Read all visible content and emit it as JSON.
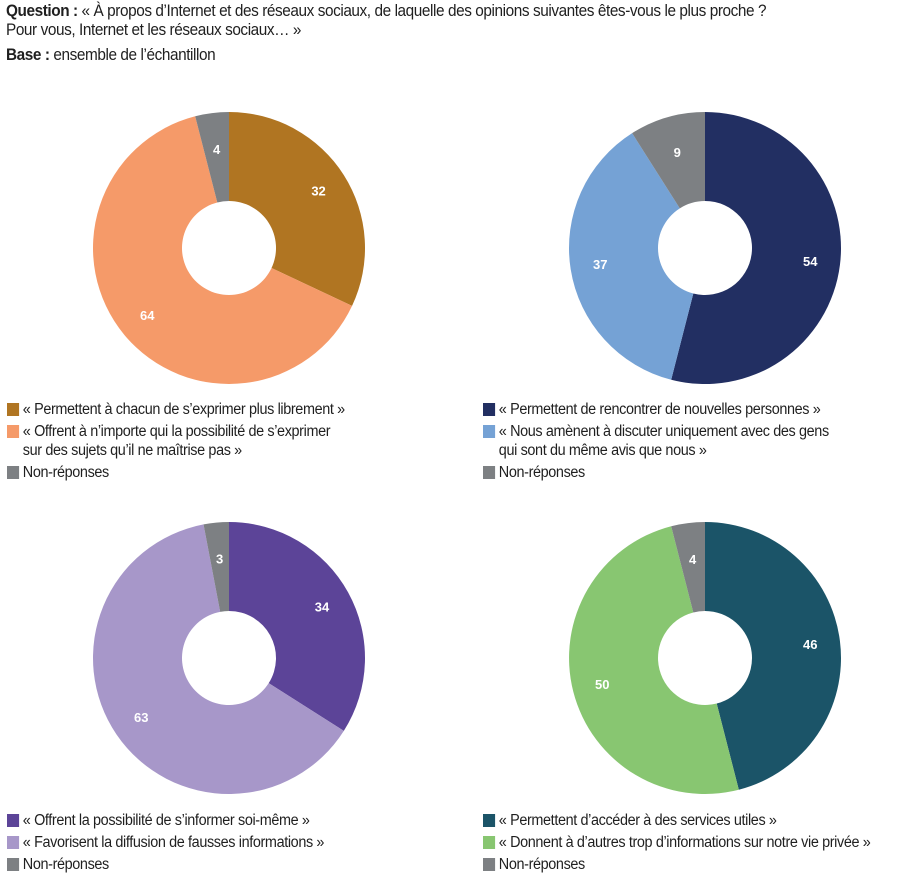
{
  "header": {
    "question_label": "Question :",
    "question_line1": "« À propos d’Internet et des réseaux sociaux, de laquelle des opinions suivantes êtes-vous le plus proche ?",
    "question_line2": "Pour vous, Internet et les réseaux sociaux… »",
    "base_label": "Base :",
    "base_text": "ensemble de l’échantillon"
  },
  "chart_data": [
    {
      "type": "pie",
      "donut": true,
      "title": "",
      "slices": [
        {
          "label": "« Permettent à chacun de s’exprimer plus librement »",
          "value": 32,
          "color": "#b07522"
        },
        {
          "label": "« Offrent à n’importe qui la possibilité de s’exprimer sur des sujets qu’il ne maîtrise pas »",
          "value": 64,
          "color": "#f59a69"
        },
        {
          "label": "Non-réponses",
          "value": 4,
          "color": "#7d8083"
        }
      ],
      "legend": [
        {
          "lines": [
            "« Permettent à chacun de s’exprimer plus librement »"
          ],
          "color": "#b07522"
        },
        {
          "lines": [
            "« Offrent à n’importe qui la possibilité de s’exprimer",
            "sur des sujets qu’il ne maîtrise pas »"
          ],
          "color": "#f59a69"
        },
        {
          "lines": [
            "Non-réponses"
          ],
          "color": "#7d8083"
        }
      ],
      "legend_position": "bottom"
    },
    {
      "type": "pie",
      "donut": true,
      "title": "",
      "slices": [
        {
          "label": "« Permettent de rencontrer de nouvelles personnes »",
          "value": 54,
          "color": "#222f62"
        },
        {
          "label": "« Nous amènent à discuter uniquement avec des gens qui sont du même avis que nous »",
          "value": 37,
          "color": "#75a2d5"
        },
        {
          "label": "Non-réponses",
          "value": 9,
          "color": "#7d8083"
        }
      ],
      "legend": [
        {
          "lines": [
            "« Permettent de rencontrer de nouvelles personnes »"
          ],
          "color": "#222f62"
        },
        {
          "lines": [
            "« Nous amènent à discuter uniquement avec des gens",
            "qui sont du même avis que nous »"
          ],
          "color": "#75a2d5"
        },
        {
          "lines": [
            "Non-réponses"
          ],
          "color": "#7d8083"
        }
      ],
      "legend_position": "bottom"
    },
    {
      "type": "pie",
      "donut": true,
      "title": "",
      "slices": [
        {
          "label": "« Offrent la possibilité de s’informer soi-même »",
          "value": 34,
          "color": "#5c4498"
        },
        {
          "label": "« Favorisent la diffusion de fausses informations »",
          "value": 63,
          "color": "#a797c9"
        },
        {
          "label": "Non-réponses",
          "value": 3,
          "color": "#7d8083"
        }
      ],
      "legend": [
        {
          "lines": [
            "« Offrent la possibilité de s’informer soi-même »"
          ],
          "color": "#5c4498"
        },
        {
          "lines": [
            "« Favorisent la diffusion de fausses informations »"
          ],
          "color": "#a797c9"
        },
        {
          "lines": [
            "Non-réponses"
          ],
          "color": "#7d8083"
        }
      ],
      "legend_position": "bottom"
    },
    {
      "type": "pie",
      "donut": true,
      "title": "",
      "slices": [
        {
          "label": "« Permettent d’accéder à des services utiles »",
          "value": 46,
          "color": "#1b5468"
        },
        {
          "label": "« Donnent à d’autres trop d’informations sur notre vie privée »",
          "value": 50,
          "color": "#88c671"
        },
        {
          "label": "Non-réponses",
          "value": 4,
          "color": "#7d8083"
        }
      ],
      "legend": [
        {
          "lines": [
            "« Permettent d’accéder à des services utiles »"
          ],
          "color": "#1b5468"
        },
        {
          "lines": [
            "« Donnent à d’autres trop d’informations sur notre vie privée »"
          ],
          "color": "#88c671"
        },
        {
          "lines": [
            "Non-réponses"
          ],
          "color": "#7d8083"
        }
      ],
      "legend_position": "bottom"
    }
  ]
}
